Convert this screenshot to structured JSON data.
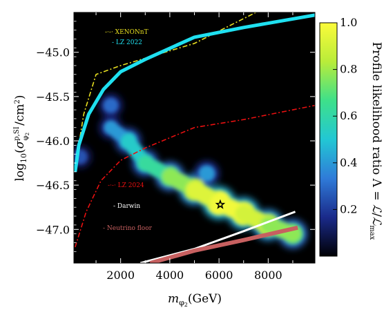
{
  "chart_data": {
    "type": "heatmap",
    "title": "",
    "xlabel": "m_{φ₂}(GeV)",
    "ylabel": "log₁₀(σ^{p,SI}_{φ₂}/cm²)",
    "xlim": [
      100,
      9900
    ],
    "ylim": [
      -47.38,
      -44.55
    ],
    "xticks": [
      2000,
      4000,
      6000,
      8000
    ],
    "xtick_labels": [
      "2000",
      "4000",
      "6000",
      "8000"
    ],
    "yticks": [
      -45.0,
      -45.5,
      -46.0,
      -46.5,
      -47.0
    ],
    "ytick_labels": [
      "−45.0",
      "−45.5",
      "−46.0",
      "−46.5",
      "−47.0"
    ],
    "grid": false,
    "background": "#000000",
    "colorbar": {
      "label": "Profile likelihood ratio Λ = ℒ/ℒ_max",
      "range": [
        0.0,
        1.0
      ],
      "ticks": [
        0.2,
        0.4,
        0.6,
        0.8,
        1.0
      ],
      "tick_labels": [
        "0.2",
        "0.4",
        "0.6",
        "0.8",
        "1.0"
      ],
      "colormap": [
        "#000004",
        "#1a2a8a",
        "#2f7bd8",
        "#22c7d4",
        "#3ee08a",
        "#b9ec3a",
        "#fbfb3a"
      ]
    },
    "best_fit": {
      "x": 6050,
      "y": -46.72,
      "marker": "star"
    },
    "legend_placement": "inside-left",
    "series": [
      {
        "name": "XENONnT",
        "style": "dash-dot",
        "color": "#e8e020",
        "x": [
          150,
          500,
          1000,
          2000,
          5000,
          7500
        ],
        "y": [
          -46.3,
          -45.7,
          -45.25,
          -45.15,
          -44.9,
          -44.55
        ]
      },
      {
        "name": "LZ 2022",
        "style": "solid",
        "color": "#1fe0f0",
        "x": [
          150,
          300,
          700,
          1300,
          2000,
          3000,
          5000,
          7000,
          9900
        ],
        "y": [
          -46.35,
          -46.05,
          -45.7,
          -45.42,
          -45.22,
          -45.08,
          -44.83,
          -44.72,
          -44.58
        ]
      },
      {
        "name": "LZ 2024",
        "style": "dash-dot",
        "color": "#e81010",
        "x": [
          150,
          600,
          1200,
          2000,
          3000,
          5000,
          7000,
          9900
        ],
        "y": [
          -47.2,
          -46.8,
          -46.45,
          -46.22,
          -46.08,
          -45.85,
          -45.76,
          -45.6
        ]
      },
      {
        "name": "Darwin",
        "style": "solid",
        "color": "#ffffff",
        "x": [
          2800,
          5000,
          7000,
          9100
        ],
        "y": [
          -47.38,
          -47.22,
          -47.02,
          -46.8
        ]
      },
      {
        "name": "Neutrino floor",
        "style": "solid",
        "color": "#c76060",
        "x": [
          3200,
          5000,
          7000,
          9200
        ],
        "y": [
          -47.38,
          -47.24,
          -47.12,
          -46.98
        ]
      }
    ],
    "likelihood_region": {
      "description_points": [
        {
          "x": 1600,
          "y": -45.85,
          "value": 0.3
        },
        {
          "x": 2300,
          "y": -46.0,
          "value": 0.5
        },
        {
          "x": 3000,
          "y": -46.25,
          "value": 0.55
        },
        {
          "x": 4000,
          "y": -46.4,
          "value": 0.7
        },
        {
          "x": 5000,
          "y": -46.55,
          "value": 0.85
        },
        {
          "x": 6000,
          "y": -46.7,
          "value": 1.0
        },
        {
          "x": 7000,
          "y": -46.82,
          "value": 0.95
        },
        {
          "x": 8000,
          "y": -46.95,
          "value": 0.85
        },
        {
          "x": 9000,
          "y": -47.05,
          "value": 0.7
        },
        {
          "x": 1600,
          "y": -45.6,
          "value": 0.3
        },
        {
          "x": 5500,
          "y": -46.37,
          "value": 0.4
        },
        {
          "x": 350,
          "y": -46.18,
          "value": 0.25
        }
      ]
    }
  }
}
